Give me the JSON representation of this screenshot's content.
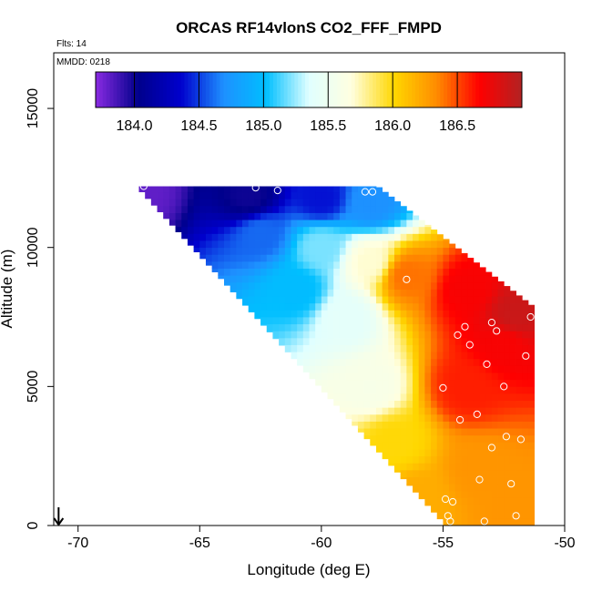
{
  "chart_data": {
    "type": "heatmap",
    "title": "ORCAS RF14vlonS CO2_FFF_FMPD",
    "subtitle": "Flts: 14",
    "annotation": "MMDD: 0218",
    "xlabel": "Longitude (deg E)",
    "ylabel": "Altitude (m)",
    "xlim": [
      -71,
      -50
    ],
    "ylim": [
      0,
      17000
    ],
    "x_ticks": [
      -70,
      -65,
      -60,
      -55,
      -50
    ],
    "y_ticks": [
      0,
      5000,
      10000,
      15000
    ],
    "colorbar": {
      "range": [
        183.7,
        187.0
      ],
      "ticks": [
        184.0,
        184.5,
        185.0,
        185.5,
        186.0,
        186.5
      ],
      "tick_labels": [
        "184.0",
        "184.5",
        "185.0",
        "185.5",
        "186.0",
        "186.5"
      ],
      "colors": [
        "#8a2be2",
        "#00008b",
        "#0000cd",
        "#1e90ff",
        "#00bfff",
        "#e0ffff",
        "#ffffe0",
        "#ffd700",
        "#ff8c00",
        "#ff0000",
        "#b22222"
      ]
    },
    "field": {
      "x_min": -67.5,
      "x_max": -51.3,
      "dx": 0.25,
      "dz": 250,
      "alt_top": [
        [
          -67.5,
          12200
        ],
        [
          -57.8,
          12200
        ],
        [
          -51.3,
          7800
        ]
      ],
      "alt_bottom": [
        [
          -67.5,
          12000
        ],
        [
          -55.0,
          0
        ],
        [
          -51.3,
          0
        ]
      ],
      "anchors": [
        {
          "lon": -67.5,
          "alt": 12000,
          "value": 183.8
        },
        {
          "lon": -63.0,
          "alt": 11800,
          "value": 184.0
        },
        {
          "lon": -60.0,
          "alt": 11800,
          "value": 184.4
        },
        {
          "lon": -58.0,
          "alt": 11600,
          "value": 184.7
        },
        {
          "lon": -62.5,
          "alt": 10500,
          "value": 184.6
        },
        {
          "lon": -60.0,
          "alt": 10000,
          "value": 185.2
        },
        {
          "lon": -58.0,
          "alt": 9500,
          "value": 185.7
        },
        {
          "lon": -56.5,
          "alt": 9000,
          "value": 186.4
        },
        {
          "lon": -54.0,
          "alt": 8500,
          "value": 186.7
        },
        {
          "lon": -52.0,
          "alt": 7600,
          "value": 186.9
        },
        {
          "lon": -61.0,
          "alt": 8500,
          "value": 185.0
        },
        {
          "lon": -59.0,
          "alt": 7500,
          "value": 185.4
        },
        {
          "lon": -58.0,
          "alt": 5000,
          "value": 185.6
        },
        {
          "lon": -57.0,
          "alt": 3000,
          "value": 186.0
        },
        {
          "lon": -56.0,
          "alt": 1000,
          "value": 186.2
        },
        {
          "lon": -54.0,
          "alt": 5000,
          "value": 186.6
        },
        {
          "lon": -52.5,
          "alt": 6500,
          "value": 186.7
        },
        {
          "lon": -53.5,
          "alt": 2000,
          "value": 186.3
        },
        {
          "lon": -52.0,
          "alt": 500,
          "value": 186.3
        }
      ]
    },
    "sample_points": [
      {
        "lon": -67.3,
        "alt": 12200
      },
      {
        "lon": -62.7,
        "alt": 12150
      },
      {
        "lon": -61.8,
        "alt": 12050
      },
      {
        "lon": -58.2,
        "alt": 12000
      },
      {
        "lon": -57.9,
        "alt": 12000
      },
      {
        "lon": -56.5,
        "alt": 8850
      },
      {
        "lon": -54.1,
        "alt": 7150
      },
      {
        "lon": -54.4,
        "alt": 6850
      },
      {
        "lon": -53.9,
        "alt": 6500
      },
      {
        "lon": -53.0,
        "alt": 7300
      },
      {
        "lon": -52.8,
        "alt": 7000
      },
      {
        "lon": -51.4,
        "alt": 7500
      },
      {
        "lon": -51.6,
        "alt": 6100
      },
      {
        "lon": -53.2,
        "alt": 5800
      },
      {
        "lon": -52.5,
        "alt": 5000
      },
      {
        "lon": -55.0,
        "alt": 4950
      },
      {
        "lon": -54.3,
        "alt": 3800
      },
      {
        "lon": -53.6,
        "alt": 4000
      },
      {
        "lon": -52.4,
        "alt": 3200
      },
      {
        "lon": -51.8,
        "alt": 3100
      },
      {
        "lon": -53.0,
        "alt": 2800
      },
      {
        "lon": -53.5,
        "alt": 1650
      },
      {
        "lon": -52.2,
        "alt": 1500
      },
      {
        "lon": -54.9,
        "alt": 950
      },
      {
        "lon": -54.6,
        "alt": 850
      },
      {
        "lon": -54.8,
        "alt": 350
      },
      {
        "lon": -54.7,
        "alt": 150
      },
      {
        "lon": -53.3,
        "alt": 150
      },
      {
        "lon": -52.0,
        "alt": 350
      }
    ],
    "arrow_marker": {
      "lon": -70.8,
      "alt": 0
    }
  }
}
